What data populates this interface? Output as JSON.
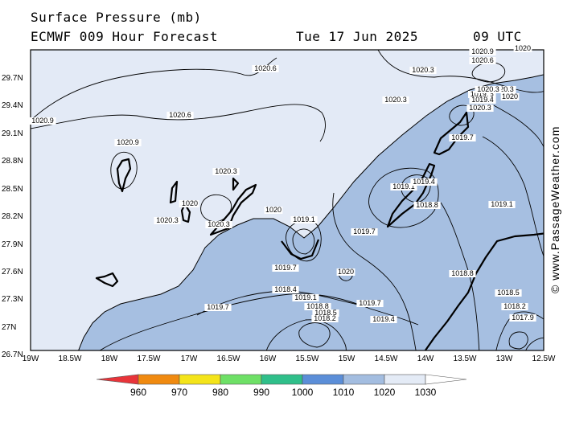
{
  "header": {
    "title": "Surface Pressure (mb)",
    "model": "ECMWF 009 Hour Forecast",
    "date": "Tue 17 Jun 2025",
    "time": "09 UTC"
  },
  "watermark": "© www.PassageWeather.com",
  "axes": {
    "lat_labels": [
      "29.7N",
      "29.4N",
      "29.1N",
      "28.8N",
      "28.5N",
      "28.2N",
      "27.9N",
      "27.6N",
      "27.3N",
      "27N",
      "26.7N"
    ],
    "lon_labels": [
      "19W",
      "18.5W",
      "18W",
      "17.5W",
      "17W",
      "16.5W",
      "16W",
      "15.5W",
      "15W",
      "14.5W",
      "14W",
      "13.5W",
      "13W",
      "12.5W"
    ]
  },
  "colorbar": {
    "labels": [
      "960",
      "970",
      "980",
      "990",
      "1000",
      "1010",
      "1020",
      "1030"
    ],
    "colors": [
      "#e8343a",
      "#f08a10",
      "#f4e41a",
      "#6ee066",
      "#2fbf8a",
      "#5b8ed8",
      "#a3bde0",
      "#e4ebf6",
      "#ffffff"
    ]
  },
  "isobar_labels": [
    {
      "text": "1020.6"
    },
    {
      "text": "1020.9"
    },
    {
      "text": "1020"
    },
    {
      "text": "1020.6"
    },
    {
      "text": "1020.3"
    },
    {
      "text": "1020.3"
    },
    {
      "text": "1020.9"
    },
    {
      "text": "1020.6"
    },
    {
      "text": "1020.9"
    },
    {
      "text": "1020.3"
    },
    {
      "text": "1020.6"
    },
    {
      "text": "1020"
    },
    {
      "text": "1020.3"
    },
    {
      "text": "1020.3"
    },
    {
      "text": "1020"
    },
    {
      "text": "1020.3"
    },
    {
      "text": "1019.7"
    },
    {
      "text": "1019.7"
    },
    {
      "text": "1020"
    },
    {
      "text": "1019.7"
    },
    {
      "text": "1018.4"
    },
    {
      "text": "1019.1"
    },
    {
      "text": "1019.7"
    },
    {
      "text": "1018.8"
    },
    {
      "text": "1018.5"
    },
    {
      "text": "1018.2"
    },
    {
      "text": "1019.4"
    },
    {
      "text": "1020"
    },
    {
      "text": "1019.1"
    },
    {
      "text": "1019.4"
    },
    {
      "text": "1018.8"
    },
    {
      "text": "1019.1"
    },
    {
      "text": "1019.7"
    },
    {
      "text": "1019."
    },
    {
      "text": "1019.4"
    },
    {
      "text": "1019.1"
    },
    {
      "text": "1020.3"
    },
    {
      "text": "1020"
    },
    {
      "text": "1018.8"
    },
    {
      "text": "1018.5"
    },
    {
      "text": "1018.2"
    },
    {
      "text": "1017.9"
    },
    {
      "text": "1020.3"
    }
  ]
}
